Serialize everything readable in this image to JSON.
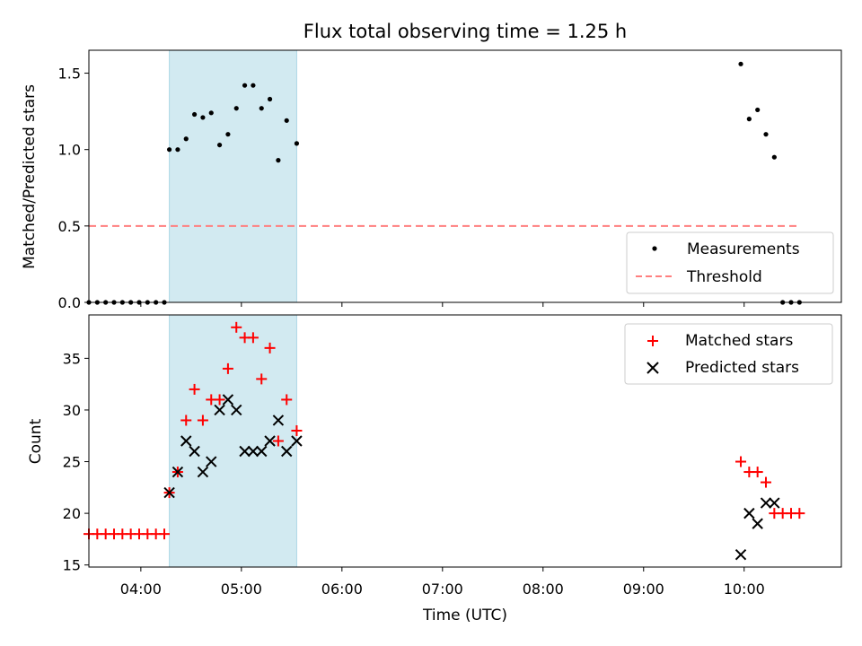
{
  "chart_data": {
    "type": "scatter",
    "title": "Flux total observing time = 1.25 h",
    "xlabel": "Time (UTC)",
    "x_ticks": [
      "04:00",
      "05:00",
      "06:00",
      "07:00",
      "08:00",
      "09:00",
      "10:00"
    ],
    "x_range": [
      "03:29",
      "10:58"
    ],
    "shaded_span": [
      "04:17",
      "05:33"
    ],
    "colors": {
      "shade": "#add8e6",
      "matched": "#ff0000",
      "predicted": "#000000",
      "threshold": "#ff7f7f",
      "measure": "#000000"
    },
    "panels": [
      {
        "id": "ratio",
        "ylabel": "Matched/Predicted stars",
        "ylim": [
          0.0,
          1.65
        ],
        "yticks": [
          "0.0",
          "0.5",
          "1.0",
          "1.5"
        ],
        "legend_position": "lower-right",
        "series": [
          {
            "name": "Measurements",
            "marker": "dot",
            "points": [
              [
                "03:29",
                0
              ],
              [
                "03:34",
                0
              ],
              [
                "03:39",
                0
              ],
              [
                "03:44",
                0
              ],
              [
                "03:49",
                0
              ],
              [
                "03:54",
                0
              ],
              [
                "03:59",
                0
              ],
              [
                "04:04",
                0
              ],
              [
                "04:09",
                0
              ],
              [
                "04:14",
                0
              ],
              [
                "04:17",
                1.0
              ],
              [
                "04:22",
                1.0
              ],
              [
                "04:27",
                1.07
              ],
              [
                "04:32",
                1.23
              ],
              [
                "04:37",
                1.21
              ],
              [
                "04:42",
                1.24
              ],
              [
                "04:47",
                1.03
              ],
              [
                "04:52",
                1.1
              ],
              [
                "04:57",
                1.27
              ],
              [
                "05:02",
                1.42
              ],
              [
                "05:07",
                1.42
              ],
              [
                "05:12",
                1.27
              ],
              [
                "05:17",
                1.33
              ],
              [
                "05:22",
                0.93
              ],
              [
                "05:27",
                1.19
              ],
              [
                "05:33",
                1.04
              ],
              [
                "09:58",
                1.56
              ],
              [
                "10:03",
                1.2
              ],
              [
                "10:08",
                1.26
              ],
              [
                "10:13",
                1.1
              ],
              [
                "10:18",
                0.95
              ],
              [
                "10:23",
                0
              ],
              [
                "10:28",
                0
              ],
              [
                "10:33",
                0
              ]
            ]
          },
          {
            "name": "Threshold",
            "style": "dashed",
            "points": [
              [
                "03:29",
                0.5
              ],
              [
                "10:33",
                0.5
              ]
            ]
          }
        ]
      },
      {
        "id": "count",
        "ylabel": "Count",
        "ylim": [
          14.8,
          39.2
        ],
        "yticks": [
          "15",
          "20",
          "25",
          "30",
          "35"
        ],
        "legend_position": "upper-right",
        "series": [
          {
            "name": "Matched stars",
            "marker": "plus",
            "points": [
              [
                "03:29",
                18
              ],
              [
                "03:34",
                18
              ],
              [
                "03:39",
                18
              ],
              [
                "03:44",
                18
              ],
              [
                "03:49",
                18
              ],
              [
                "03:54",
                18
              ],
              [
                "03:59",
                18
              ],
              [
                "04:04",
                18
              ],
              [
                "04:09",
                18
              ],
              [
                "04:14",
                18
              ],
              [
                "04:17",
                22
              ],
              [
                "04:22",
                24
              ],
              [
                "04:27",
                29
              ],
              [
                "04:32",
                32
              ],
              [
                "04:37",
                29
              ],
              [
                "04:42",
                31
              ],
              [
                "04:47",
                31
              ],
              [
                "04:52",
                34
              ],
              [
                "04:57",
                38
              ],
              [
                "05:02",
                37
              ],
              [
                "05:07",
                37
              ],
              [
                "05:12",
                33
              ],
              [
                "05:17",
                36
              ],
              [
                "05:22",
                27
              ],
              [
                "05:27",
                31
              ],
              [
                "05:33",
                28
              ],
              [
                "09:58",
                25
              ],
              [
                "10:03",
                24
              ],
              [
                "10:08",
                24
              ],
              [
                "10:13",
                23
              ],
              [
                "10:18",
                20
              ],
              [
                "10:23",
                20
              ],
              [
                "10:28",
                20
              ],
              [
                "10:33",
                20
              ]
            ]
          },
          {
            "name": "Predicted stars",
            "marker": "x",
            "points": [
              [
                "04:17",
                22
              ],
              [
                "04:22",
                24
              ],
              [
                "04:27",
                27
              ],
              [
                "04:32",
                26
              ],
              [
                "04:37",
                24
              ],
              [
                "04:42",
                25
              ],
              [
                "04:47",
                30
              ],
              [
                "04:52",
                31
              ],
              [
                "04:57",
                30
              ],
              [
                "05:02",
                26
              ],
              [
                "05:07",
                26
              ],
              [
                "05:12",
                26
              ],
              [
                "05:17",
                27
              ],
              [
                "05:22",
                29
              ],
              [
                "05:27",
                26
              ],
              [
                "05:33",
                27
              ],
              [
                "09:58",
                16
              ],
              [
                "10:03",
                20
              ],
              [
                "10:08",
                19
              ],
              [
                "10:13",
                21
              ],
              [
                "10:18",
                21
              ]
            ]
          }
        ]
      }
    ]
  }
}
